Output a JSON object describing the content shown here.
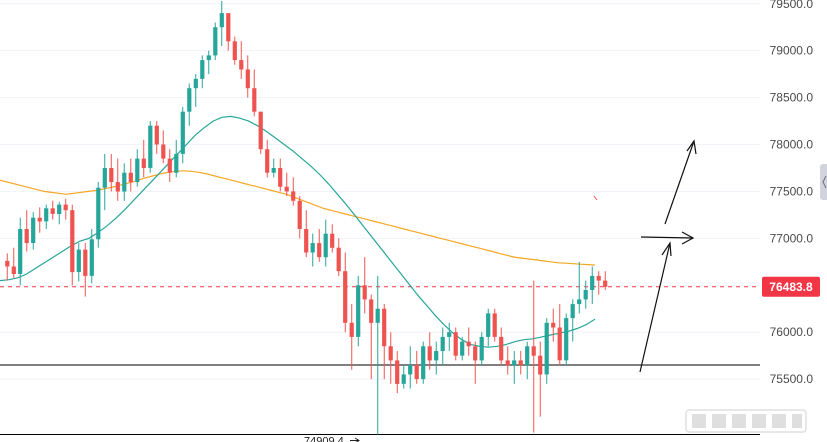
{
  "chart_data": {
    "type": "candlestick",
    "y_axis": {
      "position": "right",
      "range": [
        74830,
        79540
      ],
      "ticks": [
        "79500.0",
        "79000.0",
        "78500.0",
        "78000.0",
        "77500.0",
        "77000.0",
        "76500.0",
        "76000.0",
        "75500.0"
      ],
      "tick_values": [
        79500,
        79000,
        78500,
        78000,
        77500,
        77000,
        76500,
        76000,
        75500
      ]
    },
    "current_price": {
      "value": 76483.8,
      "label": "76483.8",
      "color": "#f23645"
    },
    "low_marker": {
      "value": 74909.4,
      "label": "74909.4"
    },
    "horizontal_lines": [
      75650,
      74910
    ],
    "colors": {
      "up": "#26a69a",
      "down": "#ef5350",
      "ma_fast": "#26a69a",
      "ma_slow": "#f5a623",
      "grid": "#f0f3fa",
      "level_line": "#000000"
    },
    "candles_ohlc": [
      [
        76760,
        76840,
        76550,
        76700
      ],
      [
        76700,
        76900,
        76580,
        76620
      ],
      [
        76620,
        77220,
        76500,
        77100
      ],
      [
        77100,
        77300,
        76860,
        76950
      ],
      [
        76950,
        77280,
        76880,
        77220
      ],
      [
        77220,
        77330,
        77060,
        77180
      ],
      [
        77180,
        77360,
        77100,
        77320
      ],
      [
        77320,
        77400,
        77200,
        77260
      ],
      [
        77260,
        77390,
        77150,
        77360
      ],
      [
        77360,
        77420,
        77200,
        77300
      ],
      [
        77300,
        77360,
        76500,
        76640
      ],
      [
        76640,
        76950,
        76540,
        76880
      ],
      [
        76880,
        76950,
        76380,
        76600
      ],
      [
        76600,
        77100,
        76520,
        76990
      ],
      [
        76990,
        77600,
        76900,
        77540
      ],
      [
        77540,
        77900,
        77300,
        77750
      ],
      [
        77750,
        77900,
        77500,
        77600
      ],
      [
        77600,
        77850,
        77400,
        77500
      ],
      [
        77500,
        77800,
        77400,
        77700
      ],
      [
        77700,
        77850,
        77500,
        77600
      ],
      [
        77600,
        77950,
        77550,
        77850
      ],
      [
        77850,
        78050,
        77650,
        77750
      ],
      [
        77750,
        78250,
        77700,
        78200
      ],
      [
        78200,
        78250,
        77900,
        78000
      ],
      [
        78000,
        78150,
        77800,
        77850
      ],
      [
        77850,
        77950,
        77600,
        77700
      ],
      [
        77700,
        78050,
        77650,
        77900
      ],
      [
        77900,
        78400,
        77800,
        78350
      ],
      [
        78350,
        78650,
        78200,
        78600
      ],
      [
        78600,
        78750,
        78400,
        78700
      ],
      [
        78700,
        78950,
        78600,
        78900
      ],
      [
        78900,
        79000,
        78750,
        78950
      ],
      [
        78950,
        79300,
        78900,
        79250
      ],
      [
        79250,
        79530,
        79050,
        79400
      ],
      [
        79400,
        79300,
        79000,
        79100
      ],
      [
        79100,
        79150,
        78850,
        78900
      ],
      [
        78900,
        79100,
        78700,
        78800
      ],
      [
        78800,
        78950,
        78500,
        78600
      ],
      [
        78600,
        78800,
        78300,
        78350
      ],
      [
        78350,
        78350,
        77900,
        77950
      ],
      [
        77950,
        78050,
        77650,
        77700
      ],
      [
        77700,
        77850,
        77650,
        77750
      ],
      [
        77750,
        77850,
        77500,
        77550
      ],
      [
        77550,
        77700,
        77450,
        77500
      ],
      [
        77500,
        77650,
        77350,
        77400
      ],
      [
        77400,
        77450,
        77000,
        77100
      ],
      [
        77100,
        77300,
        76800,
        76850
      ],
      [
        76850,
        77050,
        76700,
        76950
      ],
      [
        76950,
        77100,
        76750,
        76800
      ],
      [
        76800,
        77200,
        76700,
        77050
      ],
      [
        77050,
        77150,
        76850,
        76900
      ],
      [
        76900,
        77000,
        76600,
        76650
      ],
      [
        76650,
        76850,
        76000,
        76100
      ],
      [
        76100,
        76300,
        75600,
        75950
      ],
      [
        75950,
        76600,
        75850,
        76500
      ],
      [
        76500,
        76800,
        76200,
        76350
      ],
      [
        76350,
        76400,
        75500,
        76100
      ],
      [
        76100,
        76600,
        74909,
        76250
      ],
      [
        76250,
        76300,
        75500,
        75850
      ],
      [
        75850,
        76000,
        75450,
        75700
      ],
      [
        75700,
        75800,
        75350,
        75450
      ],
      [
        75450,
        75650,
        75400,
        75550
      ],
      [
        75550,
        75850,
        75400,
        75650
      ],
      [
        75650,
        75800,
        75450,
        75500
      ],
      [
        75500,
        75900,
        75450,
        75850
      ],
      [
        75850,
        76000,
        75600,
        75700
      ],
      [
        75700,
        75900,
        75550,
        75800
      ],
      [
        75800,
        76050,
        75650,
        75950
      ],
      [
        75950,
        76100,
        75800,
        76000
      ],
      [
        76000,
        76050,
        75700,
        75750
      ],
      [
        75750,
        75950,
        75700,
        75900
      ],
      [
        75900,
        76050,
        75750,
        75850
      ],
      [
        75850,
        75900,
        75450,
        75700
      ],
      [
        75700,
        76000,
        75650,
        75950
      ],
      [
        75950,
        76250,
        75850,
        76200
      ],
      [
        76200,
        76250,
        75900,
        75950
      ],
      [
        75950,
        76050,
        75650,
        75700
      ],
      [
        75700,
        75850,
        75550,
        75650
      ],
      [
        75650,
        75800,
        75450,
        75700
      ],
      [
        75700,
        75800,
        75550,
        75650
      ],
      [
        75650,
        75900,
        75500,
        75850
      ],
      [
        75850,
        76550,
        74930,
        75750
      ],
      [
        75750,
        75900,
        75100,
        75550
      ],
      [
        75550,
        76150,
        75450,
        76100
      ],
      [
        76100,
        76250,
        75900,
        76050
      ],
      [
        76050,
        76300,
        75650,
        75700
      ],
      [
        75700,
        76200,
        75650,
        76150
      ],
      [
        76150,
        76350,
        75900,
        76300
      ],
      [
        76300,
        76750,
        76200,
        76350
      ],
      [
        76350,
        76550,
        76250,
        76450
      ],
      [
        76450,
        76700,
        76300,
        76600
      ],
      [
        76600,
        76650,
        76400,
        76550
      ],
      [
        76550,
        76650,
        76450,
        76484
      ]
    ],
    "ma_slow_values": [
      77620,
      77600,
      77580,
      77560,
      77540,
      77520,
      77500,
      77490,
      77480,
      77470,
      77480,
      77490,
      77500,
      77510,
      77525,
      77540,
      77560,
      77580,
      77600,
      77625,
      77650,
      77670,
      77690,
      77705,
      77715,
      77720,
      77715,
      77705,
      77690,
      77670,
      77650,
      77630,
      77610,
      77590,
      77570,
      77550,
      77530,
      77510,
      77490,
      77470,
      77440,
      77410,
      77380,
      77350,
      77320,
      77300,
      77280,
      77260,
      77240,
      77220,
      77200,
      77180,
      77160,
      77140,
      77120,
      77100,
      77080,
      77060,
      77040,
      77020,
      77000,
      76980,
      76960,
      76940,
      76920,
      76900,
      76880,
      76860,
      76840,
      76820,
      76800,
      76790,
      76780,
      76770,
      76760,
      76750,
      76740,
      76735,
      76730,
      76725,
      76720,
      76715
    ],
    "ma_fast_values": [
      76550,
      76560,
      76580,
      76620,
      76680,
      76740,
      76800,
      76860,
      76920,
      76970,
      77000,
      77060,
      77130,
      77210,
      77300,
      77400,
      77500,
      77600,
      77700,
      77800,
      77900,
      78000,
      78100,
      78180,
      78250,
      78290,
      78300,
      78280,
      78250,
      78200,
      78140,
      78070,
      78000,
      77930,
      77850,
      77770,
      77680,
      77580,
      77470,
      77360,
      77240,
      77120,
      77000,
      76880,
      76760,
      76640,
      76520,
      76400,
      76290,
      76180,
      76080,
      75990,
      75920,
      75870,
      75850,
      75840,
      75850,
      75870,
      75900,
      75920,
      75930,
      75950,
      75970,
      75990,
      76010,
      76040,
      76080,
      76140
    ]
  }
}
